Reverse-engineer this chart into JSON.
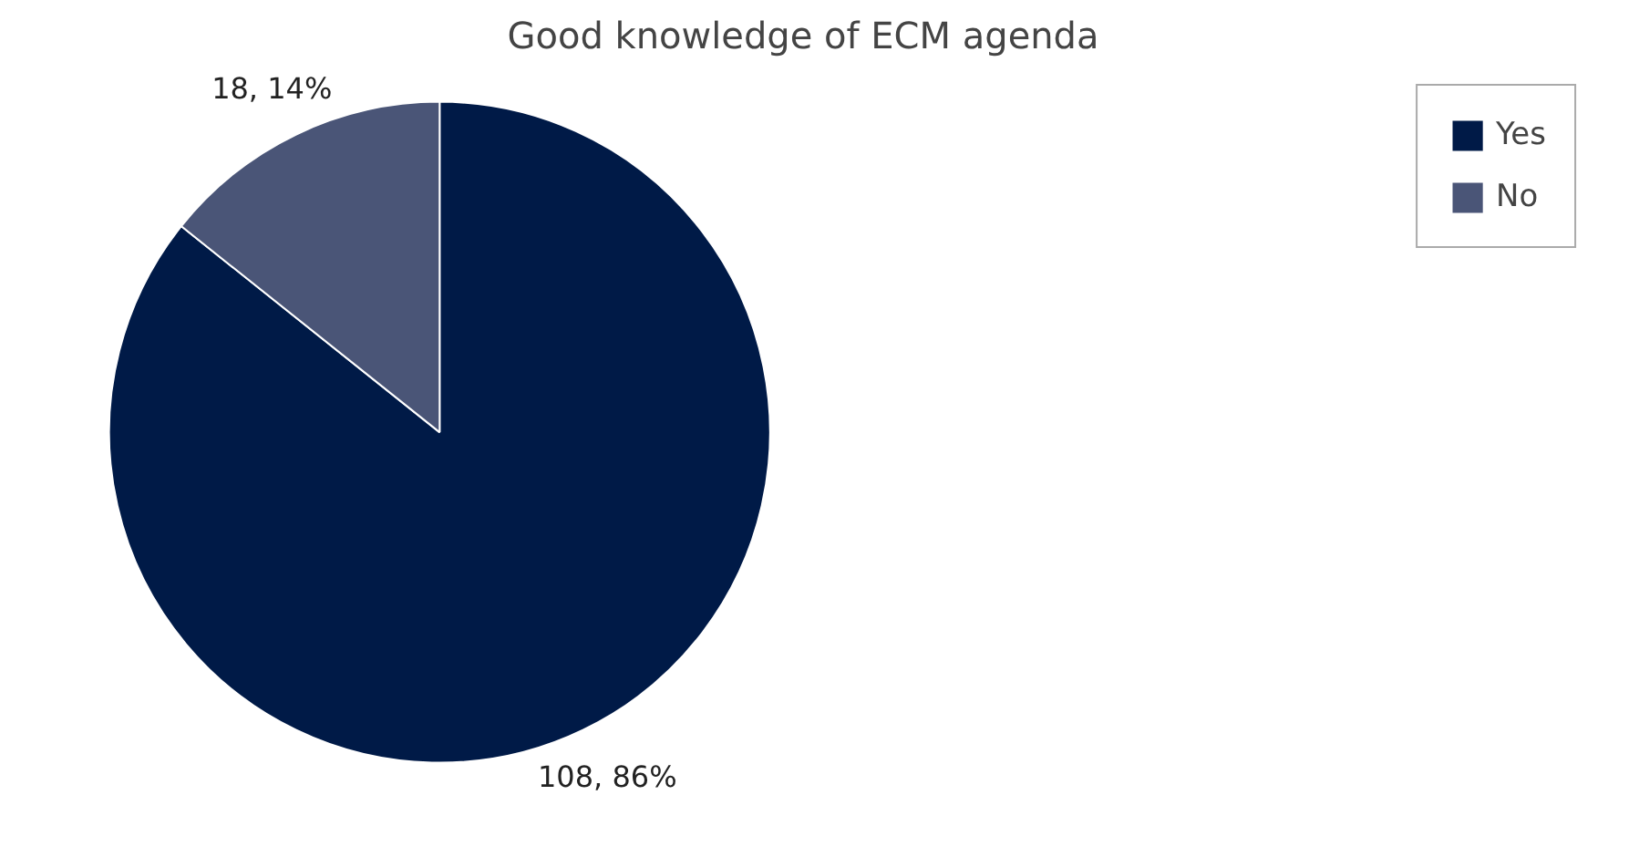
{
  "chart_data": {
    "type": "pie",
    "title": "Good knowledge of ECM agenda",
    "categories": [
      "Yes",
      "No"
    ],
    "values": [
      108,
      18
    ],
    "colors": [
      "#001a47",
      "#4a5577"
    ],
    "value_labels": [
      "108, 86%",
      "18, 14%"
    ],
    "legend": "top right"
  }
}
